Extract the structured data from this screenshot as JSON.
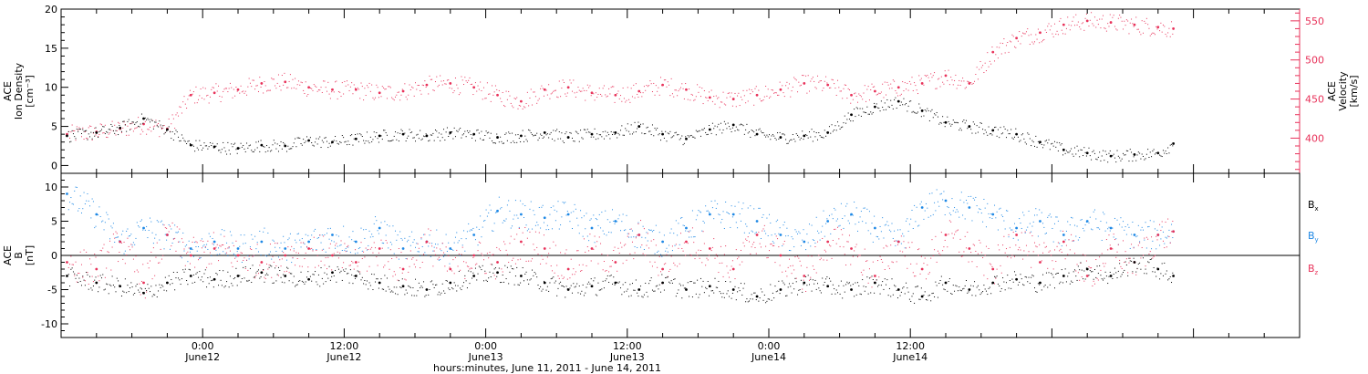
{
  "chart_data": [
    {
      "type": "scatter",
      "ylabel": [
        "ACE",
        "Ion Density",
        "[cm⁻³]"
      ],
      "ylabel_right": [
        "ACE",
        "Velocity",
        "[km/s]"
      ],
      "x_range_hours": [
        -12,
        93
      ],
      "ylim": [
        -1,
        20
      ],
      "ylim_right": [
        355,
        565
      ],
      "yticks": [
        0,
        5,
        10,
        15,
        20
      ],
      "yticks_right": [
        400,
        450,
        500,
        550
      ],
      "grid": false,
      "colors": {
        "density": "#000000",
        "velocity": "#e8325a"
      },
      "series": [
        {
          "axis": "left",
          "x": [
            -11.5,
            -9,
            -7,
            -5,
            -3,
            -1,
            1,
            3,
            5,
            7,
            9,
            11,
            13,
            15,
            17,
            19,
            21,
            23,
            25,
            27,
            29,
            31,
            33,
            35,
            37,
            39,
            41,
            43,
            45,
            47,
            49,
            51,
            53,
            55,
            57,
            59,
            61,
            63,
            65,
            67,
            69,
            71,
            73,
            75,
            77,
            79,
            81,
            82.3
          ],
          "y": [
            3.8,
            4.2,
            4.8,
            6.0,
            4.6,
            2.6,
            2.4,
            2.2,
            2.6,
            2.5,
            3.2,
            3.0,
            3.4,
            3.8,
            4.0,
            3.8,
            4.2,
            4.0,
            3.6,
            3.8,
            4.2,
            3.6,
            4.0,
            4.2,
            5.0,
            4.0,
            3.4,
            4.6,
            5.2,
            4.0,
            3.6,
            3.8,
            4.2,
            6.5,
            7.5,
            8.2,
            7.0,
            5.5,
            5.0,
            4.5,
            4.0,
            3.0,
            2.0,
            1.6,
            1.2,
            1.4,
            1.6,
            2.8
          ]
        },
        {
          "axis": "right",
          "x": [
            -11.5,
            -9,
            -7,
            -5,
            -3,
            -1,
            1,
            3,
            5,
            7,
            9,
            11,
            13,
            15,
            17,
            19,
            21,
            23,
            25,
            27,
            29,
            31,
            33,
            35,
            37,
            39,
            41,
            43,
            45,
            47,
            49,
            51,
            53,
            55,
            57,
            59,
            61,
            63,
            65,
            67,
            69,
            71,
            73,
            75,
            77,
            79,
            81,
            82.3
          ],
          "y": [
            405,
            408,
            412,
            418,
            412,
            455,
            458,
            462,
            470,
            472,
            465,
            462,
            462,
            458,
            460,
            468,
            470,
            465,
            455,
            447,
            462,
            465,
            458,
            455,
            460,
            468,
            462,
            452,
            450,
            455,
            462,
            470,
            468,
            455,
            460,
            465,
            470,
            480,
            470,
            510,
            528,
            535,
            545,
            550,
            548,
            545,
            542,
            540
          ]
        }
      ]
    },
    {
      "type": "scatter",
      "ylabel": [
        "ACE",
        "B",
        "[nT]"
      ],
      "x_range_hours": [
        -12,
        93
      ],
      "ylim": [
        -12,
        12
      ],
      "yticks": [
        -10,
        -5,
        0,
        5,
        10
      ],
      "grid": false,
      "legend": "right",
      "x_tick_labels": [
        {
          "time": "0:00",
          "day": "June12"
        },
        {
          "time": "12:00",
          "day": "June12"
        },
        {
          "time": "0:00",
          "day": "June13"
        },
        {
          "time": "12:00",
          "day": "June13"
        },
        {
          "time": "0:00",
          "day": "June14"
        },
        {
          "time": "12:00",
          "day": "June14"
        }
      ],
      "x_tick_hours": [
        0,
        12,
        24,
        36,
        48,
        60
      ],
      "xlabel": "hours:minutes, June 11, 2011 - June 14, 2011",
      "colors": {
        "Bx": "#000000",
        "By": "#1e88e5",
        "Bz": "#e8325a"
      },
      "series": [
        {
          "name": "Bx",
          "legend_sub": "x",
          "x": [
            -11.5,
            -9,
            -7,
            -5,
            -3,
            -1,
            1,
            3,
            5,
            7,
            9,
            11,
            13,
            15,
            17,
            19,
            21,
            23,
            25,
            27,
            29,
            31,
            33,
            35,
            37,
            39,
            41,
            43,
            45,
            47,
            49,
            51,
            53,
            55,
            57,
            59,
            61,
            63,
            65,
            67,
            69,
            71,
            73,
            75,
            77,
            79,
            81,
            82.3
          ],
          "y": [
            -3,
            -4,
            -4.5,
            -5.5,
            -4,
            -3,
            -3.5,
            -3,
            -2.5,
            -3,
            -3.5,
            -2.5,
            -3,
            -4,
            -4.5,
            -5,
            -4,
            -3,
            -2.5,
            -3,
            -4,
            -5,
            -4.5,
            -4,
            -5,
            -4,
            -5,
            -4.5,
            -5,
            -6,
            -5,
            -4,
            -4.5,
            -5,
            -4,
            -5,
            -6,
            -4,
            -5,
            -4,
            -3.5,
            -4,
            -3,
            -2,
            -3,
            -1,
            -2,
            -3
          ]
        },
        {
          "name": "By",
          "legend_sub": "y",
          "x": [
            -11.5,
            -9,
            -7,
            -5,
            -3,
            -1,
            1,
            3,
            5,
            7,
            9,
            11,
            13,
            15,
            17,
            19,
            21,
            23,
            25,
            27,
            29,
            31,
            33,
            35,
            37,
            39,
            41,
            43,
            45,
            47,
            49,
            51,
            53,
            55,
            57,
            59,
            61,
            63,
            65,
            67,
            69,
            71,
            73,
            75,
            77,
            79,
            81,
            82.3
          ],
          "y": [
            9,
            6,
            2,
            4,
            3,
            1,
            2,
            1,
            2,
            1,
            2,
            3,
            2,
            4,
            1,
            2,
            1,
            3,
            6.5,
            6,
            5.5,
            6,
            4,
            5,
            3,
            2,
            4,
            6,
            6,
            5,
            3,
            2,
            5,
            6,
            4,
            2,
            7,
            8,
            7,
            6,
            4,
            5,
            3,
            5,
            4,
            3,
            3,
            3.5
          ]
        },
        {
          "name": "Bz",
          "legend_sub": "z",
          "x": [
            -11.5,
            -9,
            -7,
            -5,
            -3,
            -1,
            1,
            3,
            5,
            7,
            9,
            11,
            13,
            15,
            17,
            19,
            21,
            23,
            25,
            27,
            29,
            31,
            33,
            35,
            37,
            39,
            41,
            43,
            45,
            47,
            49,
            51,
            53,
            55,
            57,
            59,
            61,
            63,
            65,
            67,
            69,
            71,
            73,
            75,
            77,
            79,
            81,
            82.3
          ],
          "y": [
            -1,
            -2,
            2,
            -4,
            3,
            0,
            1,
            0,
            -1,
            0,
            1,
            0,
            -1,
            1,
            -2,
            2,
            -2,
            0,
            -1,
            2,
            1,
            -2,
            1,
            -1,
            3,
            -2,
            2,
            1,
            -2,
            3,
            0,
            -3,
            2,
            1,
            -3,
            2,
            -2,
            3,
            1,
            -2,
            3,
            -1,
            2,
            -3,
            1,
            -1,
            3,
            3.5
          ]
        }
      ]
    }
  ]
}
